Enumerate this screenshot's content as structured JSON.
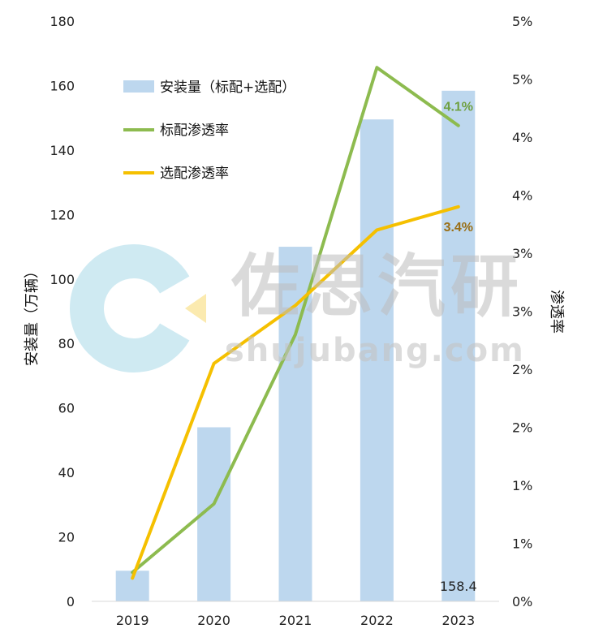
{
  "chart_data": {
    "type": "bar",
    "categories": [
      "2019",
      "2020",
      "2021",
      "2022",
      "2023"
    ],
    "series": [
      {
        "name": "安装量（标配+选配）",
        "kind": "bar",
        "axis": "left",
        "color": "#bdd7ee",
        "values": [
          9.5,
          54,
          110,
          149.5,
          158.4
        ]
      },
      {
        "name": "标配渗透率",
        "kind": "line",
        "axis": "right",
        "color": "#8dbb4f",
        "values": [
          0.25,
          0.84,
          2.3,
          4.6,
          4.1
        ]
      },
      {
        "name": "选配渗透率",
        "kind": "line",
        "axis": "right",
        "color": "#f5c000",
        "values": [
          0.2,
          2.05,
          2.55,
          3.2,
          3.4
        ]
      }
    ],
    "ylabel": "安装量（万辆）",
    "y2label": "渗透率",
    "ylim": [
      0,
      180
    ],
    "yticks": [
      "0",
      "20",
      "40",
      "60",
      "80",
      "100",
      "120",
      "140",
      "160",
      "180"
    ],
    "y2lim": [
      0,
      5
    ],
    "y2ticks": [
      "0%",
      "1%",
      "1%",
      "2%",
      "2%",
      "3%",
      "3%",
      "4%",
      "4%",
      "5%",
      "5%"
    ],
    "grid": false,
    "legend_position": "top-left",
    "annotations": [
      {
        "text": "158.4",
        "series": 0,
        "index": 4
      },
      {
        "text": "4.1%",
        "series": 1,
        "index": 4
      },
      {
        "text": "3.4%",
        "series": 2,
        "index": 4
      }
    ],
    "label_colors": {
      "standard": "#70a040",
      "optional": "#9a6f16"
    }
  },
  "watermark": {
    "text_cn": "佐思汽研",
    "text_en": "shujubang.com",
    "logo_color": "#bfe3ee",
    "logo_accent": "#fbe8a6"
  }
}
